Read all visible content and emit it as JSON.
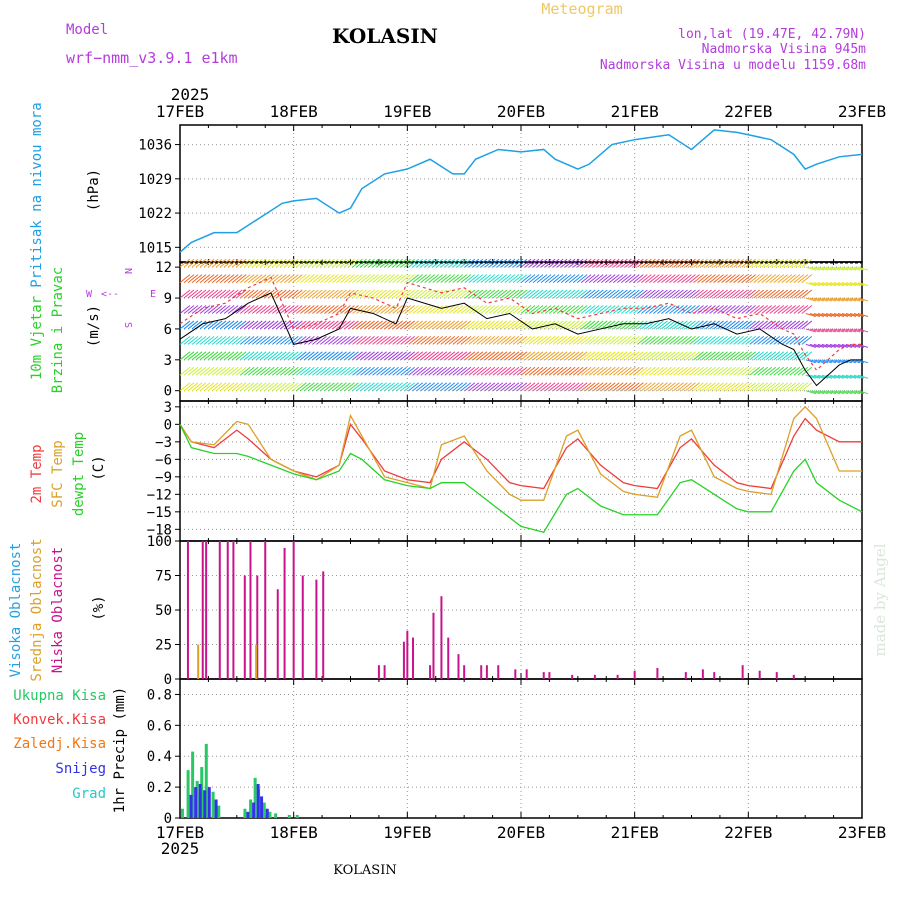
{
  "header": {
    "model_label": "Model",
    "model_name": "wrf−nmm_v3.9.1  e1km",
    "station_title": "KOLASIN",
    "product": "Meteogram",
    "coords": "lon,lat (19.47E, 42.79N)",
    "altitude": "Nadmorska Visina 945m",
    "model_altitude": "Nadmorska Visina u modelu 1159.68m"
  },
  "footer": {
    "station": "KOLASIN"
  },
  "watermark": "made by Angel",
  "time_axis": {
    "year": "2025",
    "labels": [
      "17FEB",
      "18FEB",
      "19FEB",
      "20FEB",
      "21FEB",
      "22FEB",
      "23FEB"
    ]
  },
  "colors": {
    "pressure": "#1ea0e6",
    "temp2m": "#f03c3c",
    "sfc_temp": "#dca028",
    "dewpt": "#28d228",
    "cloud_high": "#28a0dc",
    "cloud_mid": "#dca028",
    "cloud_low": "#c8148c",
    "precip_total": "#28c864",
    "precip_conv": "#f03c3c",
    "precip_frz": "#f07814",
    "precip_snow": "#3232e6",
    "precip_grad": "#28c8c8",
    "wind_label": "#b43cdc"
  },
  "panels": {
    "pressure": {
      "title": "Pritisak na nivou mora",
      "unit": "(hPa)",
      "ticks": [
        "1036",
        "1029",
        "1022",
        "1015"
      ]
    },
    "wind": {
      "title1": "10m Vjetar",
      "title2": "Brzina i Pravac",
      "unit": "(m/s)",
      "compass_w": "W",
      "compass_n": "N",
      "compass_e": "E",
      "compass_s": "S",
      "ticks": [
        "12",
        "9",
        "6",
        "3",
        "0"
      ]
    },
    "temperature": {
      "label_2m": "2m Temp",
      "label_sfc": "SFC Temp",
      "label_dew": "dewpt Temp",
      "unit": "(C)",
      "ticks": [
        "3",
        "0",
        "−3",
        "−6",
        "−9",
        "−12",
        "−15",
        "−18"
      ]
    },
    "clouds": {
      "label_high": "Visoka Oblacnost",
      "label_mid": "Srednja Oblacnost",
      "label_low": "Niska Oblacnost",
      "unit": "(%)",
      "ticks": [
        "100",
        "75",
        "50",
        "25",
        "0"
      ]
    },
    "precip": {
      "legend": [
        "Ukupna Kisa",
        "Konvek.Kisa",
        "Zaledj.Kisa",
        "Snijeg",
        "Grad"
      ],
      "unit": "1hr Precip (mm)",
      "ticks": [
        "0.8",
        "0.6",
        "0.4",
        "0.2",
        "0"
      ]
    }
  },
  "chart_data": [
    {
      "type": "line",
      "panel": "pressure",
      "title": "Pritisak na nivou mora",
      "ylabel": "(hPa)",
      "ylim": [
        1012,
        1040
      ],
      "x": [
        0,
        0.1,
        0.3,
        0.5,
        0.7,
        0.9,
        1.0,
        1.2,
        1.4,
        1.5,
        1.6,
        1.8,
        2.0,
        2.2,
        2.4,
        2.5,
        2.6,
        2.8,
        3.0,
        3.2,
        3.3,
        3.5,
        3.6,
        3.8,
        4.0,
        4.3,
        4.5,
        4.7,
        4.9,
        5.0,
        5.2,
        5.4,
        5.5,
        5.6,
        5.8,
        6.0
      ],
      "y": [
        1014,
        1016,
        1018,
        1018,
        1021,
        1024,
        1024.5,
        1025,
        1022,
        1023,
        1027,
        1030,
        1031,
        1033,
        1030,
        1030,
        1033,
        1035,
        1034.5,
        1035,
        1033,
        1031,
        1032,
        1036,
        1037,
        1038,
        1035,
        1039,
        1038.5,
        1038,
        1037,
        1034,
        1031,
        1032,
        1033.5,
        1034
      ]
    },
    {
      "type": "line",
      "panel": "wind",
      "title": "10m Vjetar",
      "ylabel": "(m/s)",
      "ylim": [
        -1,
        12.5
      ],
      "x": [
        0,
        0.2,
        0.4,
        0.6,
        0.8,
        0.9,
        1.0,
        1.2,
        1.4,
        1.5,
        1.7,
        1.9,
        2.0,
        2.3,
        2.5,
        2.7,
        2.9,
        3.1,
        3.3,
        3.5,
        3.7,
        3.9,
        4.1,
        4.3,
        4.5,
        4.7,
        4.9,
        5.1,
        5.3,
        5.4,
        5.5,
        5.6,
        5.7,
        5.8,
        5.9,
        6.0
      ],
      "y": [
        5,
        6.5,
        7,
        8.5,
        9.5,
        7,
        4.5,
        5,
        6,
        8,
        7.5,
        6.5,
        9,
        8,
        8.5,
        7,
        7.5,
        6,
        6.5,
        5.5,
        6,
        6.5,
        6.5,
        7,
        6,
        6.5,
        5.5,
        6,
        4.5,
        4,
        2,
        0.5,
        1.5,
        2.5,
        3,
        3
      ]
    },
    {
      "type": "line",
      "panel": "temperature",
      "ylabel": "(C)",
      "ylim": [
        -20,
        4
      ],
      "x": [
        0,
        0.1,
        0.3,
        0.5,
        0.6,
        0.8,
        1.0,
        1.2,
        1.4,
        1.5,
        1.6,
        1.8,
        2.0,
        2.2,
        2.3,
        2.5,
        2.7,
        2.9,
        3.0,
        3.2,
        3.4,
        3.5,
        3.7,
        3.9,
        4.0,
        4.2,
        4.4,
        4.5,
        4.7,
        4.9,
        5.0,
        5.2,
        5.4,
        5.5,
        5.6,
        5.8,
        6.0
      ],
      "series": [
        {
          "name": "2m Temp",
          "values": [
            0,
            -3,
            -4,
            -1,
            -2.5,
            -6,
            -8,
            -9,
            -7,
            0,
            -2.5,
            -8,
            -9.5,
            -10,
            -6,
            -3,
            -6,
            -10,
            -10.5,
            -11,
            -4,
            -2.5,
            -7,
            -10,
            -10.5,
            -11,
            -4,
            -2.5,
            -7,
            -10,
            -10.5,
            -11,
            -2,
            1,
            -1,
            -3,
            -3
          ]
        },
        {
          "name": "SFC Temp",
          "values": [
            0,
            -3,
            -3.5,
            0.5,
            0,
            -6,
            -8,
            -9.5,
            -7,
            1.5,
            -2,
            -9,
            -10,
            -11,
            -3.5,
            -2,
            -8,
            -12,
            -13,
            -13,
            -2,
            -1,
            -8.5,
            -11.5,
            -12,
            -12.5,
            -2,
            -1,
            -9,
            -11,
            -11.5,
            -12,
            1,
            3,
            1,
            -8,
            -8
          ]
        },
        {
          "name": "dewpt Temp",
          "values": [
            0,
            -4,
            -5,
            -5,
            -5.5,
            -7,
            -8.5,
            -9.5,
            -8,
            -5,
            -6,
            -9.5,
            -10.5,
            -11,
            -10,
            -10,
            -13,
            -16,
            -17.5,
            -18.5,
            -12,
            -11,
            -14,
            -15.5,
            -15.5,
            -15.5,
            -10,
            -9.5,
            -12,
            -14.5,
            -15,
            -15,
            -8,
            -6,
            -10,
            -13,
            -15
          ]
        }
      ]
    },
    {
      "type": "bar",
      "panel": "clouds",
      "ylabel": "(%)",
      "ylim": [
        0,
        100
      ],
      "series": [
        {
          "name": "Niska Oblacnost",
          "x": [
            0.07,
            0.2,
            0.23,
            0.35,
            0.42,
            0.47,
            0.57,
            0.62,
            0.68,
            0.75,
            0.86,
            0.92,
            1.0,
            1.08,
            1.2,
            1.26,
            1.75,
            1.8,
            1.97,
            2.0,
            2.05,
            2.2,
            2.23,
            2.3,
            2.36,
            2.45,
            2.5,
            2.65,
            2.7,
            2.8,
            2.95,
            3.05,
            3.2,
            3.25,
            3.45,
            3.65,
            3.85,
            4.0,
            4.2,
            4.45,
            4.6,
            4.7,
            4.95,
            5.1,
            5.25,
            5.4
          ],
          "values": [
            100,
            100,
            100,
            100,
            100,
            100,
            75,
            100,
            75,
            100,
            65,
            95,
            100,
            75,
            72,
            78,
            10,
            10,
            27,
            35,
            30,
            10,
            48,
            60,
            30,
            18,
            10,
            10,
            10,
            10,
            7,
            7,
            5,
            5,
            3,
            3,
            3,
            6,
            8,
            5,
            7,
            5,
            10,
            6,
            5,
            3
          ]
        },
        {
          "name": "Srednja Oblacnost",
          "x": [
            0.16,
            0.67
          ],
          "values": [
            25,
            25
          ]
        }
      ]
    },
    {
      "type": "bar",
      "panel": "precip",
      "ylabel": "1hr Precip (mm)",
      "ylim": [
        0,
        0.9
      ],
      "series": [
        {
          "name": "Ukupna Kisa",
          "x": [
            0.03,
            0.08,
            0.12,
            0.16,
            0.2,
            0.24,
            0.3,
            0.35,
            0.58,
            0.63,
            0.67,
            0.7,
            0.75,
            0.8,
            0.85,
            0.97,
            1.04
          ],
          "values": [
            0.06,
            0.31,
            0.43,
            0.24,
            0.33,
            0.48,
            0.17,
            0.08,
            0.06,
            0.12,
            0.26,
            0.19,
            0.1,
            0.04,
            0.03,
            0.02,
            0.02
          ]
        },
        {
          "name": "Snijeg",
          "x": [
            0.08,
            0.12,
            0.16,
            0.2,
            0.24,
            0.3,
            0.58,
            0.63,
            0.67,
            0.7,
            0.75
          ],
          "values": [
            0.15,
            0.2,
            0.22,
            0.18,
            0.2,
            0.12,
            0.04,
            0.1,
            0.22,
            0.14,
            0.06
          ]
        }
      ]
    }
  ]
}
